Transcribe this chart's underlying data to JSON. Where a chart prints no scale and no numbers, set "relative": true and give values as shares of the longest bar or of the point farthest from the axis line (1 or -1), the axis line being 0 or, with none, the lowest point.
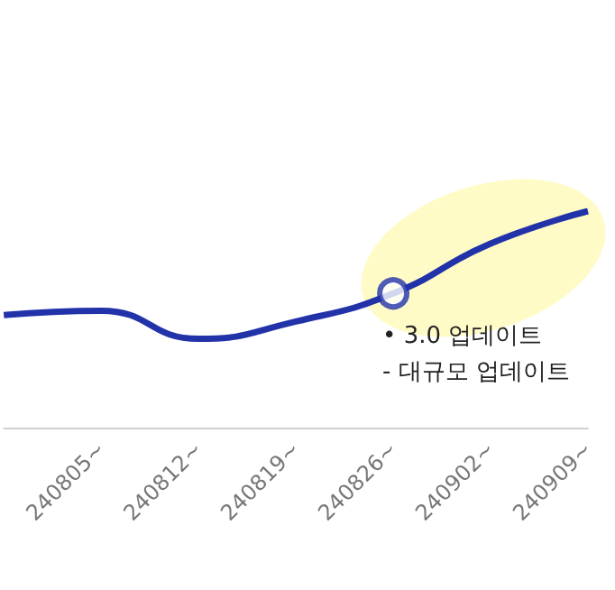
{
  "chart_data": {
    "type": "line",
    "relative": true,
    "categories": [
      null,
      "240805~",
      "240812~",
      "240819~",
      "240826~",
      "240902~",
      "240909~"
    ],
    "series": [
      {
        "color": "#2233aa",
        "values": [
          0.52,
          0.54,
          0.41,
          0.49,
          0.62,
          0.85,
          1.0
        ]
      },
      {
        "type": "scatter",
        "color": "#2233aa",
        "x": [
          "240826~"
        ],
        "values": [
          0.62
        ]
      }
    ],
    "grid": false,
    "annotations": [
      "• 3.0 업데이트\n- 대규모 업데이트"
    ]
  }
}
